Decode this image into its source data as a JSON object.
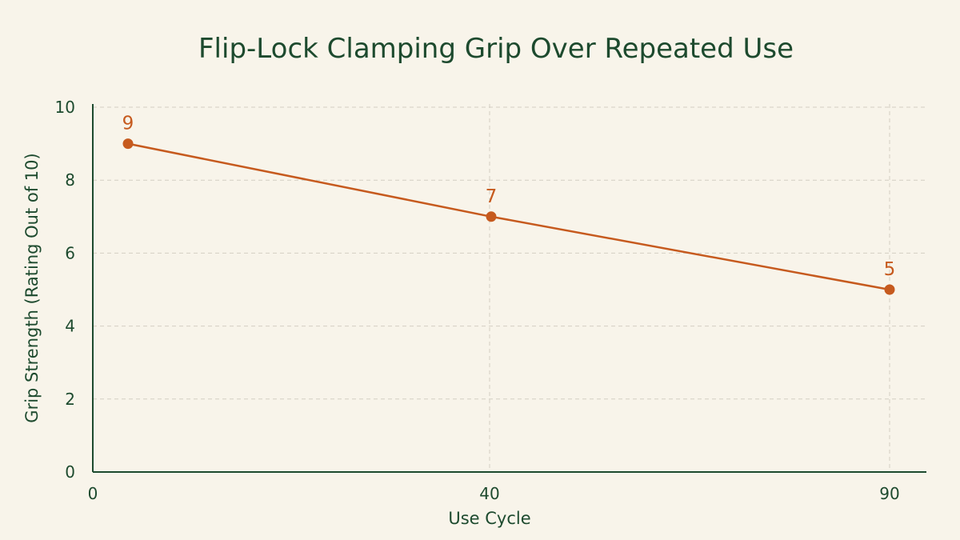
{
  "chart_data": {
    "type": "line",
    "title": "Flip-Lock Clamping Grip Over Repeated Use",
    "xlabel": "Use Cycle",
    "ylabel": "Grip Strength (Rating Out of 10)",
    "x_ticks": [
      "0",
      "40",
      "90"
    ],
    "y_ticks": [
      "0",
      "2",
      "4",
      "6",
      "8",
      "10"
    ],
    "ylim": [
      0,
      10
    ],
    "grid": true,
    "series": [
      {
        "color": "#c65a1e",
        "points": [
          {
            "x": "0",
            "y": 9,
            "label": "9"
          },
          {
            "x": "40",
            "y": 7,
            "label": "7"
          },
          {
            "x": "90",
            "y": 5,
            "label": "5"
          }
        ]
      }
    ]
  }
}
